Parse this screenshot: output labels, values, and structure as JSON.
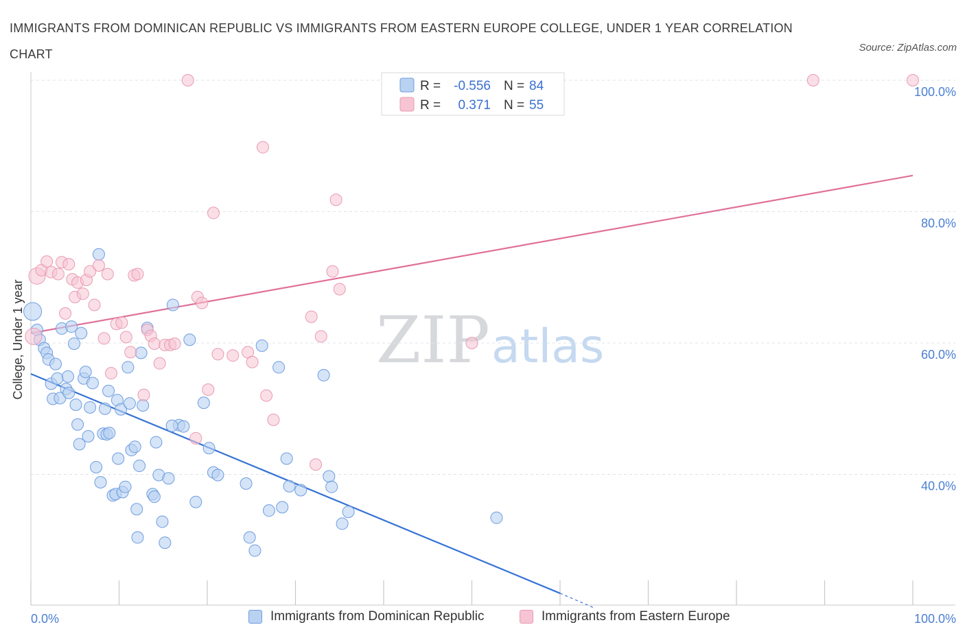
{
  "title": "IMMIGRANTS FROM DOMINICAN REPUBLIC VS IMMIGRANTS FROM EASTERN EUROPE COLLEGE, UNDER 1 YEAR CORRELATION CHART",
  "source": "Source: ZipAtlas.com",
  "watermark": {
    "zip": "ZIP",
    "atlas": "atlas"
  },
  "colors": {
    "blue": "#3572d4",
    "blue_fill": "#b9d2f2",
    "blue_stroke": "#6e9de0",
    "pink": "#e07099",
    "pink_fill": "#f7c4d4",
    "pink_stroke": "#e89ab4",
    "grid": "#dde3ea",
    "axis_text": "#4a7fd4"
  },
  "legend": {
    "rows": [
      {
        "r_label": "R =",
        "r_value": "-0.556",
        "n_label": "N =",
        "n_value": "84"
      },
      {
        "r_label": "R =",
        "r_value": "0.371",
        "n_label": "N =",
        "n_value": "55"
      }
    ]
  },
  "bottom_legend": [
    "Immigrants from Dominican Republic",
    "Immigrants from Eastern Europe"
  ],
  "chart_data": {
    "type": "scatter",
    "title": "IMMIGRANTS FROM DOMINICAN REPUBLIC VS IMMIGRANTS FROM EASTERN EUROPE COLLEGE, UNDER 1 YEAR CORRELATION CHART",
    "xlabel": "",
    "ylabel": "College, Under 1 year",
    "xlim": [
      0,
      100
    ],
    "ylim": [
      20,
      100
    ],
    "x_tick_labels": [
      "0.0%",
      "100.0%"
    ],
    "y_ticks": [
      40,
      60,
      80,
      100
    ],
    "y_tick_labels": [
      "40.0%",
      "60.0%",
      "80.0%",
      "100.0%"
    ],
    "grid": true,
    "legend_position": "top-center",
    "series": [
      {
        "name": "Immigrants from Dominican Republic",
        "r": -0.556,
        "n": 84,
        "trend": {
          "x": [
            0,
            60
          ],
          "y": [
            55.3,
            21.9
          ],
          "dashed_to": [
            64,
            19.6
          ]
        },
        "points": [
          [
            0.2,
            64.8
          ],
          [
            0.7,
            62.0
          ],
          [
            1.0,
            60.5
          ],
          [
            1.5,
            59.2
          ],
          [
            1.8,
            58.5
          ],
          [
            2.0,
            57.5
          ],
          [
            2.3,
            53.8
          ],
          [
            2.5,
            51.5
          ],
          [
            2.8,
            56.8
          ],
          [
            3.0,
            54.6
          ],
          [
            3.3,
            51.6
          ],
          [
            3.5,
            62.2
          ],
          [
            4.0,
            53.0
          ],
          [
            4.2,
            54.9
          ],
          [
            4.3,
            52.4
          ],
          [
            4.6,
            62.5
          ],
          [
            4.9,
            59.9
          ],
          [
            5.1,
            50.6
          ],
          [
            5.3,
            47.6
          ],
          [
            5.7,
            61.5
          ],
          [
            6.0,
            54.6
          ],
          [
            6.2,
            55.6
          ],
          [
            6.5,
            45.8
          ],
          [
            6.7,
            50.2
          ],
          [
            7.0,
            53.9
          ],
          [
            7.4,
            41.1
          ],
          [
            7.7,
            73.5
          ],
          [
            7.9,
            38.8
          ],
          [
            8.2,
            46.2
          ],
          [
            8.4,
            50.0
          ],
          [
            8.6,
            46.1
          ],
          [
            8.8,
            52.7
          ],
          [
            8.9,
            46.3
          ],
          [
            9.3,
            36.8
          ],
          [
            9.6,
            37.0
          ],
          [
            9.8,
            51.3
          ],
          [
            9.9,
            42.4
          ],
          [
            10.2,
            49.9
          ],
          [
            10.4,
            37.3
          ],
          [
            10.7,
            38.1
          ],
          [
            11.0,
            56.3
          ],
          [
            11.2,
            50.8
          ],
          [
            11.4,
            43.7
          ],
          [
            11.8,
            44.2
          ],
          [
            12.0,
            34.7
          ],
          [
            12.3,
            41.3
          ],
          [
            12.5,
            58.5
          ],
          [
            12.7,
            50.5
          ],
          [
            13.2,
            62.3
          ],
          [
            13.8,
            37.0
          ],
          [
            14.0,
            36.6
          ],
          [
            14.2,
            44.9
          ],
          [
            14.5,
            39.9
          ],
          [
            14.9,
            32.8
          ],
          [
            15.2,
            29.6
          ],
          [
            15.6,
            39.4
          ],
          [
            16.1,
            65.8
          ],
          [
            16.8,
            47.5
          ],
          [
            17.3,
            47.3
          ],
          [
            18.0,
            60.5
          ],
          [
            18.7,
            35.8
          ],
          [
            19.6,
            50.9
          ],
          [
            20.2,
            44.0
          ],
          [
            20.7,
            40.3
          ],
          [
            21.2,
            39.9
          ],
          [
            24.4,
            38.6
          ],
          [
            24.8,
            30.4
          ],
          [
            25.4,
            28.4
          ],
          [
            26.2,
            59.6
          ],
          [
            27.0,
            34.5
          ],
          [
            28.1,
            56.3
          ],
          [
            28.5,
            35.0
          ],
          [
            29.0,
            42.4
          ],
          [
            29.3,
            38.2
          ],
          [
            30.6,
            37.6
          ],
          [
            33.2,
            55.1
          ],
          [
            33.8,
            39.7
          ],
          [
            34.1,
            38.1
          ],
          [
            35.3,
            32.5
          ],
          [
            36.0,
            34.3
          ],
          [
            52.8,
            33.4
          ],
          [
            12.1,
            30.4
          ],
          [
            16.0,
            47.4
          ],
          [
            5.5,
            44.6
          ]
        ]
      },
      {
        "name": "Immigrants from Eastern Europe",
        "r": 0.371,
        "n": 55,
        "trend": {
          "x": [
            0,
            100
          ],
          "y": [
            61.5,
            85.5
          ]
        },
        "points": [
          [
            0.3,
            61.0
          ],
          [
            0.7,
            70.2
          ],
          [
            1.2,
            71.1
          ],
          [
            1.8,
            72.4
          ],
          [
            2.3,
            70.8
          ],
          [
            3.1,
            70.5
          ],
          [
            3.5,
            72.3
          ],
          [
            3.9,
            64.5
          ],
          [
            4.3,
            72.0
          ],
          [
            4.7,
            69.7
          ],
          [
            5.0,
            67.0
          ],
          [
            5.3,
            69.2
          ],
          [
            5.9,
            67.5
          ],
          [
            6.3,
            69.6
          ],
          [
            6.7,
            70.9
          ],
          [
            7.2,
            65.8
          ],
          [
            7.7,
            71.8
          ],
          [
            8.3,
            60.7
          ],
          [
            8.7,
            70.5
          ],
          [
            9.1,
            55.4
          ],
          [
            9.7,
            62.9
          ],
          [
            10.3,
            63.1
          ],
          [
            10.8,
            60.9
          ],
          [
            11.3,
            58.6
          ],
          [
            11.7,
            70.3
          ],
          [
            12.1,
            70.5
          ],
          [
            12.8,
            52.1
          ],
          [
            13.2,
            62.0
          ],
          [
            13.6,
            61.1
          ],
          [
            14.0,
            59.9
          ],
          [
            14.6,
            56.9
          ],
          [
            15.2,
            59.7
          ],
          [
            15.8,
            59.7
          ],
          [
            16.3,
            59.9
          ],
          [
            18.7,
            45.5
          ],
          [
            18.9,
            67.0
          ],
          [
            19.4,
            66.1
          ],
          [
            20.1,
            52.9
          ],
          [
            20.7,
            79.8
          ],
          [
            21.2,
            58.3
          ],
          [
            22.9,
            58.1
          ],
          [
            24.6,
            58.6
          ],
          [
            25.1,
            57.1
          ],
          [
            26.3,
            89.8
          ],
          [
            26.7,
            52.0
          ],
          [
            27.5,
            48.3
          ],
          [
            31.8,
            64.0
          ],
          [
            32.3,
            41.5
          ],
          [
            32.9,
            61.0
          ],
          [
            34.2,
            70.9
          ],
          [
            34.6,
            81.8
          ],
          [
            35.0,
            68.2
          ],
          [
            50.0,
            60.0
          ],
          [
            88.7,
            100.0
          ],
          [
            100.0,
            100.0
          ]
        ]
      }
    ]
  },
  "extra_points": {
    "pink_top": [
      [
        17.8,
        100.0
      ]
    ]
  }
}
